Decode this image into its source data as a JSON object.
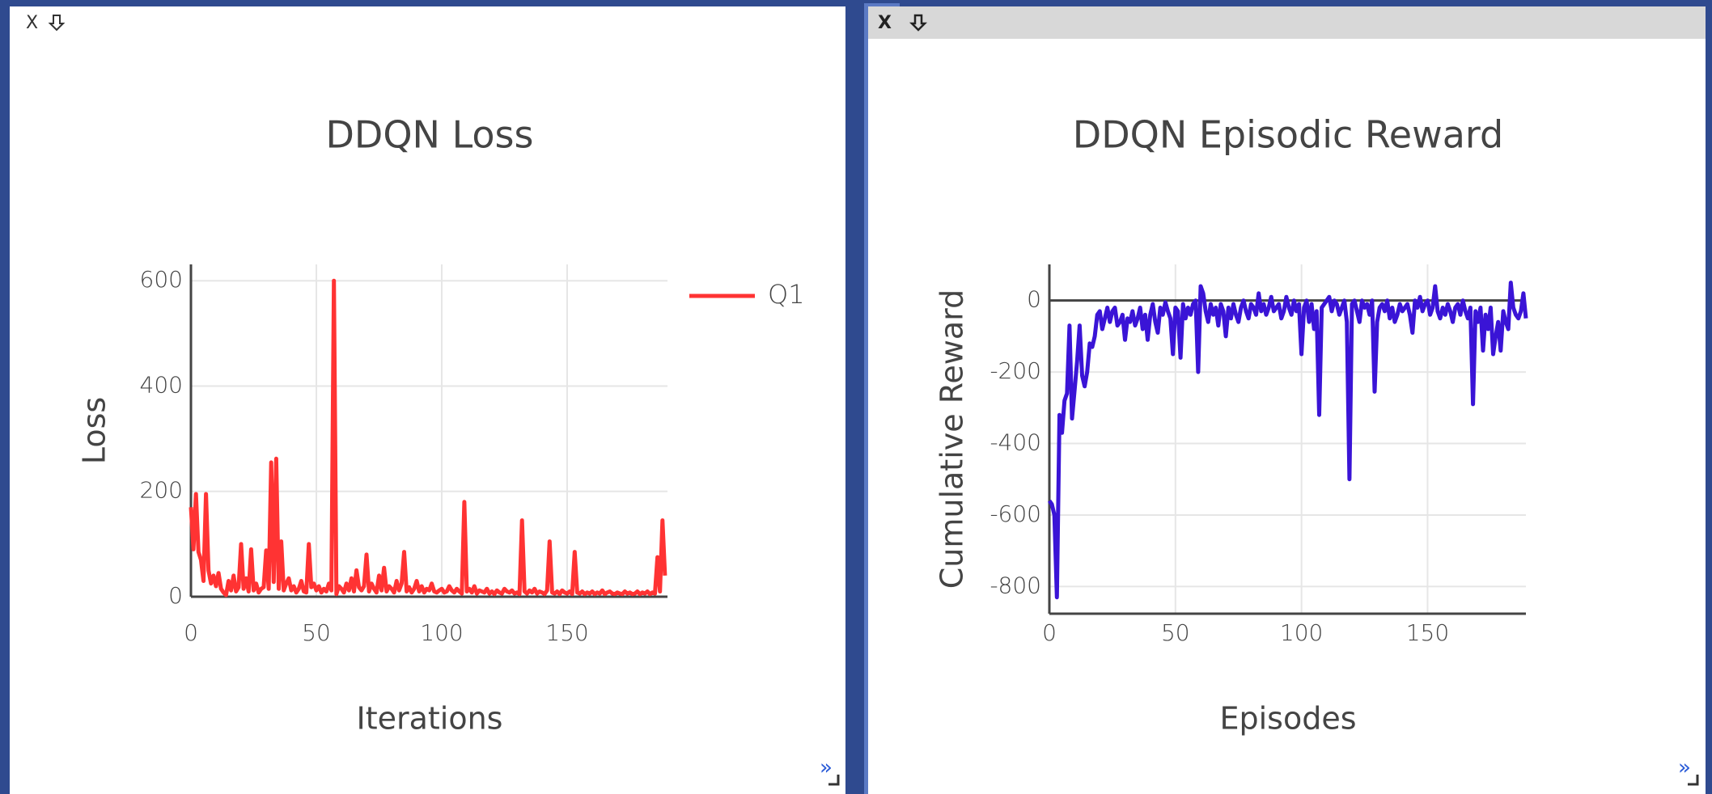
{
  "panes": [
    {
      "close": "X"
    },
    {
      "close": "X"
    }
  ],
  "chart_data": [
    {
      "type": "line",
      "title": "DDQN Loss",
      "x_label": "Iterations",
      "y_label": "Loss",
      "xlim": [
        0,
        190
      ],
      "xticks": [
        0,
        50,
        100,
        150
      ],
      "ylim": [
        0,
        631
      ],
      "yticks": [
        0,
        200,
        400,
        600
      ],
      "grid": true,
      "legend": "top-right",
      "series": [
        {
          "name": "Q1",
          "color": "#ff3333",
          "values": [
            170,
            90,
            195,
            85,
            70,
            30,
            195,
            50,
            25,
            40,
            20,
            45,
            15,
            8,
            3,
            30,
            12,
            40,
            10,
            18,
            100,
            15,
            35,
            10,
            90,
            12,
            25,
            8,
            15,
            18,
            88,
            15,
            255,
            28,
            262,
            15,
            105,
            12,
            25,
            35,
            12,
            20,
            8,
            15,
            30,
            10,
            8,
            100,
            18,
            25,
            12,
            20,
            8,
            15,
            10,
            25,
            12,
            600,
            5,
            20,
            15,
            8,
            25,
            12,
            35,
            10,
            50,
            18,
            12,
            20,
            80,
            10,
            25,
            15,
            8,
            40,
            12,
            55,
            10,
            20,
            15,
            8,
            30,
            12,
            25,
            85,
            10,
            18,
            8,
            15,
            30,
            10,
            20,
            8,
            15,
            12,
            25,
            10,
            8,
            12,
            15,
            8,
            10,
            20,
            12,
            8,
            15,
            10,
            6,
            180,
            10,
            15,
            8,
            20,
            6,
            12,
            10,
            8,
            15,
            6,
            10,
            5,
            12,
            8,
            6,
            15,
            10,
            8,
            12,
            6,
            8,
            5,
            145,
            10,
            6,
            12,
            8,
            15,
            6,
            10,
            8,
            5,
            12,
            105,
            8,
            6,
            10,
            5,
            12,
            8,
            6,
            10,
            5,
            85,
            8,
            6,
            10,
            5,
            8,
            6,
            10,
            5,
            8,
            6,
            12,
            5,
            8,
            10,
            6,
            5,
            8,
            6,
            5,
            10,
            6,
            8,
            5,
            6,
            10,
            5,
            8,
            6,
            10,
            5,
            8,
            6,
            75,
            10,
            145,
            40
          ]
        }
      ]
    },
    {
      "type": "line",
      "title": "DDQN Episodic Reward",
      "x_label": "Episodes",
      "y_label": "Cumulative Reward",
      "xlim": [
        0,
        189
      ],
      "xticks": [
        0,
        50,
        100,
        150
      ],
      "ylim": [
        -876,
        101
      ],
      "yticks": [
        -800,
        -600,
        -400,
        -200,
        0
      ],
      "grid": true,
      "series": [
        {
          "color": "#3a14d6",
          "values": [
            -560,
            -570,
            -600,
            -830,
            -320,
            -370,
            -280,
            -260,
            -70,
            -330,
            -250,
            -170,
            -70,
            -210,
            -240,
            -200,
            -120,
            -130,
            -100,
            -40,
            -30,
            -80,
            -50,
            -20,
            -60,
            -30,
            -20,
            -70,
            -60,
            -40,
            -110,
            -50,
            -60,
            -30,
            -70,
            -50,
            -20,
            -80,
            -40,
            -110,
            -40,
            -10,
            -60,
            -90,
            -20,
            -40,
            -5,
            -30,
            -50,
            -150,
            -20,
            -30,
            -160,
            -10,
            -50,
            -20,
            -40,
            -10,
            0,
            -200,
            40,
            20,
            -30,
            -60,
            -10,
            -40,
            -20,
            -70,
            -10,
            -30,
            -100,
            -20,
            -50,
            -10,
            -40,
            -60,
            -20,
            0,
            -30,
            -50,
            -10,
            -20,
            -40,
            20,
            -30,
            -10,
            -40,
            -20,
            10,
            -30,
            -20,
            -10,
            -50,
            -30,
            10,
            -20,
            -40,
            0,
            -30,
            -10,
            -150,
            -20,
            0,
            -60,
            -10,
            -80,
            -30,
            -320,
            -20,
            -10,
            0,
            10,
            -30,
            0,
            -10,
            -40,
            -20,
            0,
            -60,
            -500,
            -10,
            0,
            -30,
            -60,
            0,
            -20,
            -10,
            -40,
            0,
            -255,
            -60,
            -20,
            -10,
            -30,
            0,
            -50,
            -20,
            -60,
            -40,
            -10,
            -30,
            -20,
            -10,
            -40,
            -90,
            0,
            -20,
            10,
            -30,
            -10,
            0,
            -40,
            -20,
            40,
            -30,
            -50,
            -20,
            -40,
            -10,
            -30,
            -60,
            -20,
            -10,
            -40,
            0,
            -30,
            -50,
            -20,
            -290,
            -30,
            -60,
            -20,
            -140,
            -40,
            -80,
            -20,
            -150,
            -100,
            -60,
            -140,
            -30,
            -60,
            -80,
            50,
            -20,
            -40,
            -50,
            -30,
            20,
            -50
          ]
        }
      ]
    }
  ]
}
